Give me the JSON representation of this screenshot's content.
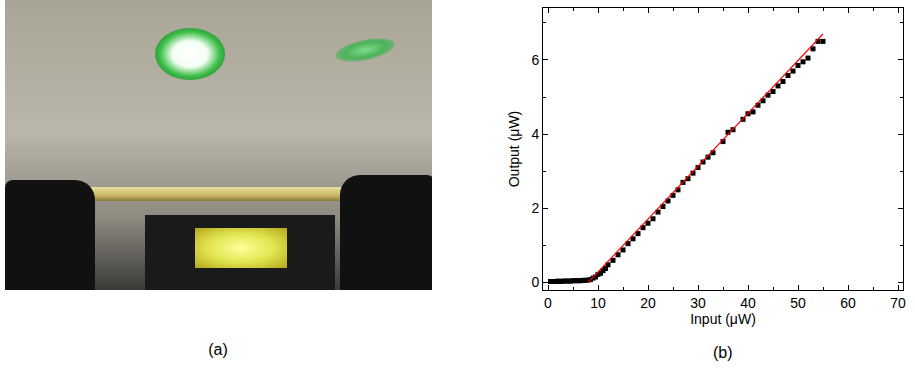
{
  "photo_panel": {
    "label": "(a)"
  },
  "chart_data": {
    "type": "scatter",
    "panel_label": "(b)",
    "x_label": "Input (μW)",
    "y_label": "Output (μW)",
    "xlim": [
      -1,
      71
    ],
    "ylim": [
      -0.2,
      7.4
    ],
    "xticks": [
      0,
      10,
      20,
      30,
      40,
      50,
      60,
      70
    ],
    "yticks": [
      0,
      2,
      4,
      6
    ],
    "grid": false,
    "series": [
      {
        "type": "scatter",
        "marker": "square",
        "color": "#000000",
        "x": [
          0.5,
          1,
          1.5,
          2,
          2.5,
          3,
          3.5,
          4,
          4.5,
          5,
          5.5,
          6,
          6.5,
          7,
          7.5,
          8,
          8.5,
          9,
          9.5,
          10,
          10.5,
          11,
          11.5,
          12,
          13,
          14,
          15,
          16,
          17,
          18,
          19,
          20,
          21,
          22,
          23,
          24,
          25,
          26,
          27,
          28,
          29,
          30,
          31,
          32,
          33,
          35,
          36,
          37,
          39,
          40,
          41,
          42,
          43,
          44,
          45,
          46,
          47,
          48,
          49,
          50,
          51,
          52,
          53,
          54,
          55
        ],
        "values": [
          0.03,
          0.03,
          0.03,
          0.04,
          0.03,
          0.04,
          0.04,
          0.04,
          0.04,
          0.05,
          0.05,
          0.05,
          0.05,
          0.06,
          0.06,
          0.07,
          0.08,
          0.12,
          0.15,
          0.22,
          0.25,
          0.32,
          0.38,
          0.48,
          0.6,
          0.75,
          0.88,
          1.05,
          1.18,
          1.32,
          1.48,
          1.6,
          1.72,
          1.9,
          2.05,
          2.2,
          2.35,
          2.5,
          2.7,
          2.8,
          2.95,
          3.1,
          3.25,
          3.38,
          3.5,
          3.8,
          4.05,
          4.12,
          4.4,
          4.55,
          4.6,
          4.78,
          4.9,
          5.05,
          5.15,
          5.3,
          5.42,
          5.58,
          5.7,
          5.85,
          5.95,
          6.05,
          6.3,
          6.5,
          6.5
        ]
      },
      {
        "type": "line",
        "line_style": "solid",
        "color": "#ff0000",
        "x": [
          8,
          55
        ],
        "values": [
          0,
          6.7
        ]
      }
    ]
  }
}
